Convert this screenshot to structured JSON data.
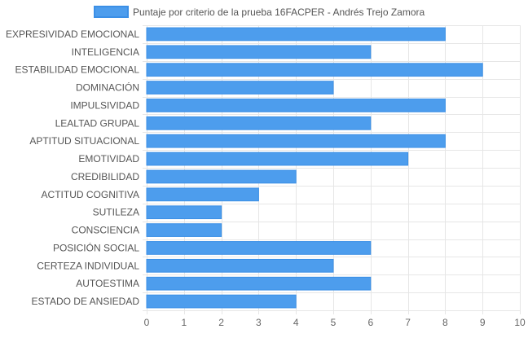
{
  "chart_data": {
    "type": "bar",
    "orientation": "horizontal",
    "legend": {
      "label": "Puntaje por criterio de la prueba 16FACPER - Andrés Trejo Zamora",
      "placement": "top-center"
    },
    "categories": [
      "EXPRESIVIDAD EMOCIONAL",
      "INTELIGENCIA",
      "ESTABILIDAD EMOCIONAL",
      "DOMINACIÓN",
      "IMPULSIVIDAD",
      "LEALTAD GRUPAL",
      "APTITUD SITUACIONAL",
      "EMOTIVIDAD",
      "CREDIBILIDAD",
      "ACTITUD COGNITIVA",
      "SUTILEZA",
      "CONSCIENCIA",
      "POSICIÓN SOCIAL",
      "CERTEZA INDIVIDUAL",
      "AUTOESTIMA",
      "ESTADO DE ANSIEDAD"
    ],
    "series": [
      {
        "name": "Puntaje por criterio de la prueba 16FACPER - Andrés Trejo Zamora",
        "values": [
          8,
          6,
          9,
          5,
          8,
          6,
          8,
          7,
          4,
          3,
          2,
          2,
          6,
          5,
          6,
          4
        ]
      }
    ],
    "xlim": [
      0,
      10
    ],
    "xticks": [
      "0",
      "1",
      "2",
      "3",
      "4",
      "5",
      "6",
      "7",
      "8",
      "9",
      "10"
    ],
    "grid": true,
    "colors": {
      "bar_fill": "#4d9ded",
      "bar_stroke": "#3b8fe6",
      "grid": "#e6e6e6",
      "tick_text": "#666666",
      "label_text": "#555555"
    }
  }
}
